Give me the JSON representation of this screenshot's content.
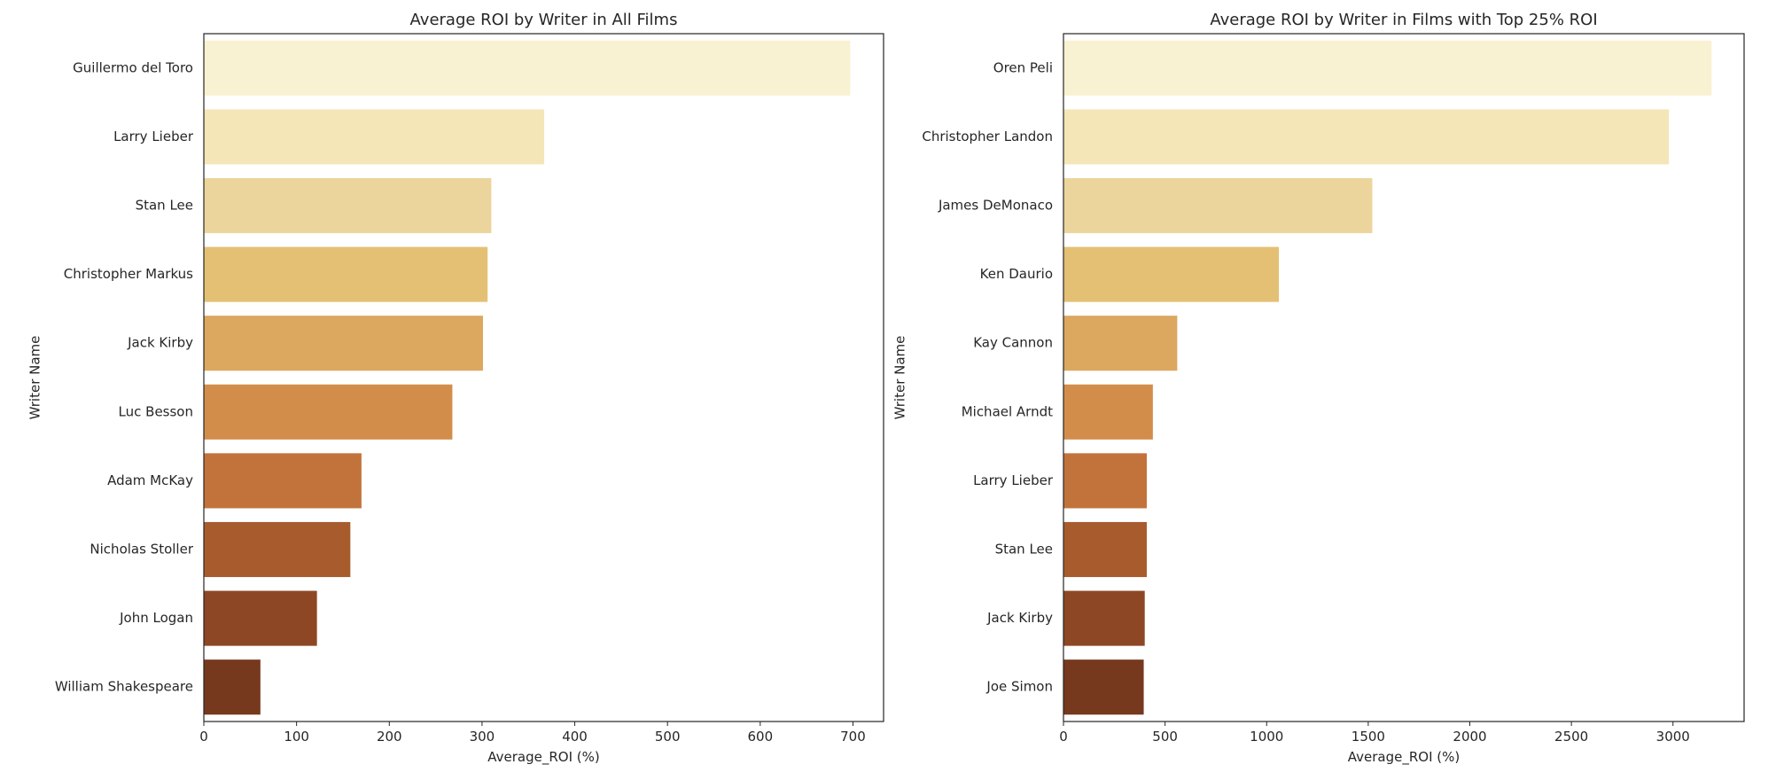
{
  "chart_data": [
    {
      "type": "bar",
      "orientation": "horizontal",
      "title": "Average ROI by Writer in All Films",
      "xlabel": "Average_ROI (%)",
      "ylabel": "Writer Name",
      "categories": [
        "Guillermo del Toro",
        "Larry Lieber",
        "Stan Lee",
        "Christopher Markus",
        "Jack Kirby",
        "Luc Besson",
        "Adam McKay",
        "Nicholas Stoller",
        "John Logan",
        "William Shakespeare"
      ],
      "values": [
        697,
        367,
        310,
        306,
        301,
        268,
        170,
        158,
        122,
        61
      ],
      "xlim": [
        0,
        733
      ],
      "xticks": [
        0,
        100,
        200,
        300,
        400,
        500,
        600,
        700
      ],
      "xtick_labels": [
        "0",
        "100",
        "200",
        "300",
        "400",
        "500",
        "600",
        "700"
      ],
      "colors": [
        "#f8f2d2",
        "#f4e6b7",
        "#ecd59c",
        "#e4c074",
        "#dca75f",
        "#d38d4b",
        "#c2733c",
        "#a85c2e",
        "#8e4725",
        "#76391e"
      ],
      "grid": false,
      "legend": "none"
    },
    {
      "type": "bar",
      "orientation": "horizontal",
      "title": "Average ROI by Writer in Films with Top 25% ROI",
      "xlabel": "Average_ROI (%)",
      "ylabel": "Writer Name",
      "categories": [
        "Oren Peli",
        "Christopher Landon",
        "James DeMonaco",
        "Ken Daurio",
        "Kay Cannon",
        "Michael Arndt",
        "Larry Lieber",
        "Stan Lee",
        "Jack Kirby",
        "Joe Simon"
      ],
      "values": [
        3190,
        2980,
        1520,
        1060,
        560,
        440,
        410,
        410,
        400,
        395
      ],
      "xlim": [
        0,
        3350
      ],
      "xticks": [
        0,
        500,
        1000,
        1500,
        2000,
        2500,
        3000
      ],
      "xtick_labels": [
        "0",
        "500",
        "1000",
        "1500",
        "2000",
        "2500",
        "3000"
      ],
      "colors": [
        "#f8f2d2",
        "#f4e6b7",
        "#ecd59c",
        "#e4c074",
        "#dca75f",
        "#d38d4b",
        "#c2733c",
        "#a85c2e",
        "#8e4725",
        "#76391e"
      ],
      "grid": false,
      "legend": "none"
    }
  ]
}
